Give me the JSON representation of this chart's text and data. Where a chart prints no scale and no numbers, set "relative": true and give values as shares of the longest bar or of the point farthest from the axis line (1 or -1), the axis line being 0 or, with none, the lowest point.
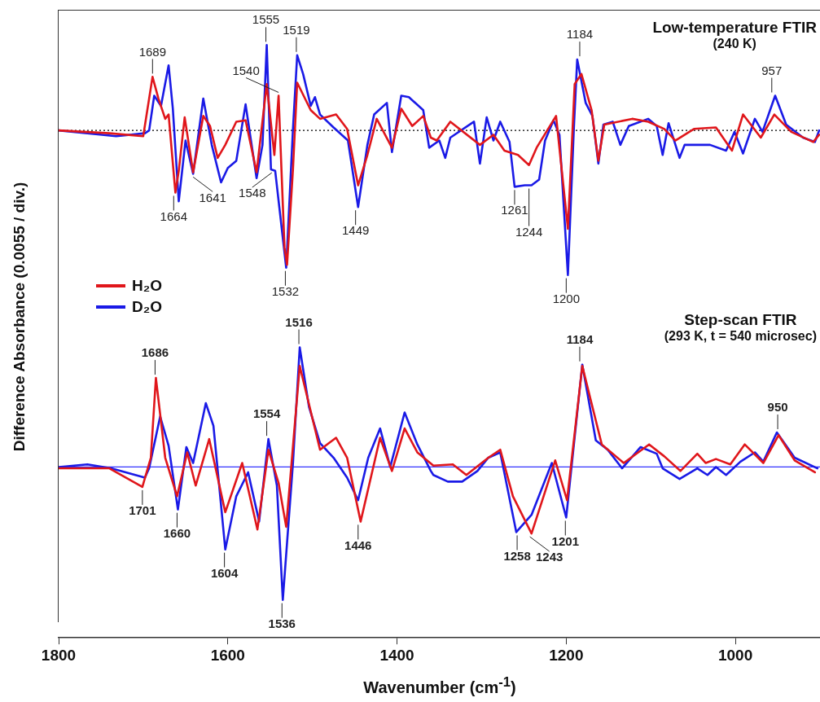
{
  "chart_data": [
    {
      "type": "line",
      "title": "Low-temperature FTIR",
      "subtitle": "(240 K)",
      "ylabel": "Difference Absorbance (0.0055 / div.)",
      "relative": true,
      "xlim": [
        1800,
        900
      ],
      "grid": false,
      "legend": "bottom left",
      "marker": "none",
      "line_style": "solid",
      "ref_lines": [
        {
          "axis": "y",
          "value": 0,
          "color": "#000000",
          "line_style": "dotted"
        }
      ],
      "series": [
        {
          "name": "H₂O",
          "color": "#e0161b",
          "x": [
            1800,
            1740,
            1700,
            1689,
            1682,
            1674,
            1670,
            1662,
            1658,
            1651,
            1641,
            1629,
            1621,
            1612,
            1603,
            1590,
            1579,
            1566,
            1554,
            1545,
            1540,
            1533,
            1530,
            1523,
            1518,
            1502,
            1491,
            1472,
            1459,
            1446,
            1435,
            1424,
            1406,
            1395,
            1382,
            1369,
            1360,
            1353,
            1337,
            1302,
            1286,
            1273,
            1257,
            1244,
            1235,
            1212,
            1198,
            1190,
            1182,
            1170,
            1162,
            1155,
            1122,
            1103,
            1084,
            1071,
            1049,
            1023,
            1004,
            991,
            970,
            954,
            934,
            908,
            901
          ],
          "values": [
            0,
            -0.02,
            -0.04,
            0.37,
            0.22,
            0.08,
            0.11,
            -0.43,
            -0.28,
            0.09,
            -0.29,
            0.1,
            0.03,
            -0.19,
            -0.1,
            0.06,
            0.07,
            -0.29,
            0.32,
            -0.17,
            0.24,
            -0.81,
            -0.93,
            -0.27,
            0.33,
            0.14,
            0.08,
            0.11,
            0.01,
            -0.38,
            -0.17,
            0.08,
            -0.12,
            0.15,
            0.03,
            0.1,
            -0.05,
            -0.07,
            0.06,
            -0.1,
            -0.03,
            -0.14,
            -0.17,
            -0.24,
            -0.12,
            0.1,
            -0.68,
            0.32,
            0.39,
            0.14,
            -0.21,
            0.04,
            0.08,
            0.06,
            0.01,
            -0.07,
            0.01,
            0.02,
            -0.14,
            0.11,
            -0.05,
            0.11,
            -0.01,
            -0.08,
            -0.03
          ]
        },
        {
          "name": "D₂O",
          "color": "#1a1ae6",
          "x": [
            1800,
            1732,
            1698,
            1693,
            1687,
            1679,
            1670,
            1665,
            1658,
            1650,
            1641,
            1629,
            1619,
            1608,
            1600,
            1590,
            1579,
            1566,
            1559,
            1554,
            1549,
            1544,
            1531,
            1523,
            1518,
            1511,
            1502,
            1497,
            1491,
            1475,
            1458,
            1446,
            1435,
            1427,
            1412,
            1406,
            1395,
            1386,
            1369,
            1362,
            1350,
            1343,
            1337,
            1309,
            1302,
            1294,
            1286,
            1278,
            1267,
            1261,
            1249,
            1241,
            1232,
            1225,
            1215,
            1208,
            1198,
            1191,
            1187,
            1177,
            1169,
            1162,
            1156,
            1145,
            1136,
            1126,
            1103,
            1093,
            1086,
            1079,
            1066,
            1060,
            1030,
            1011,
            1001,
            991,
            977,
            968,
            953,
            940,
            920,
            906,
            901
          ],
          "values": [
            0,
            -0.04,
            -0.02,
            0,
            0.24,
            0.17,
            0.45,
            0.15,
            -0.49,
            -0.07,
            -0.3,
            0.22,
            -0.1,
            -0.36,
            -0.26,
            -0.21,
            0.18,
            -0.33,
            -0.1,
            0.59,
            -0.27,
            -0.28,
            -0.95,
            0.01,
            0.52,
            0.39,
            0.17,
            0.23,
            0.11,
            0.02,
            -0.07,
            -0.53,
            -0.1,
            0.11,
            0.19,
            -0.15,
            0.24,
            0.23,
            0.14,
            -0.12,
            -0.07,
            -0.19,
            -0.05,
            0.06,
            -0.23,
            0.09,
            -0.07,
            0.06,
            -0.08,
            -0.39,
            -0.38,
            -0.38,
            -0.34,
            -0.07,
            0.07,
            -0.03,
            -1,
            0.01,
            0.49,
            0.19,
            0.1,
            -0.23,
            0.04,
            0.06,
            -0.1,
            0.03,
            0.08,
            0.03,
            -0.17,
            0.05,
            -0.19,
            -0.1,
            -0.1,
            -0.14,
            -0.01,
            -0.16,
            0.08,
            -0.01,
            0.24,
            0.04,
            -0.05,
            -0.08,
            0
          ]
        }
      ],
      "annotations": [
        {
          "text": "1689",
          "x": 1689,
          "y": 0.37
        },
        {
          "text": "1664",
          "x": 1664,
          "y": -0.43
        },
        {
          "text": "1641",
          "x": 1641,
          "y": -0.3
        },
        {
          "text": "1555",
          "x": 1555,
          "y": 0.59
        },
        {
          "text": "1548",
          "x": 1548,
          "y": -0.27
        },
        {
          "text": "1540",
          "x": 1540,
          "y": 0.24
        },
        {
          "text": "1532",
          "x": 1532,
          "y": -0.95
        },
        {
          "text": "1519",
          "x": 1519,
          "y": 0.52
        },
        {
          "text": "1449",
          "x": 1449,
          "y": -0.53
        },
        {
          "text": "1261",
          "x": 1261,
          "y": -0.39
        },
        {
          "text": "1244",
          "x": 1244,
          "y": -0.38
        },
        {
          "text": "1184",
          "x": 1184,
          "y": 0.49
        },
        {
          "text": "1200",
          "x": 1200,
          "y": -1
        },
        {
          "text": "957",
          "x": 957,
          "y": 0.24
        }
      ]
    },
    {
      "type": "line",
      "title": "Step-scan FTIR",
      "subtitle": "(293 K, t = 540 microsec)",
      "xlabel": "Wavenumber (cm$^{-1}$)",
      "relative": true,
      "xlim": [
        1800,
        900
      ],
      "xticks": [
        1800,
        1600,
        1400,
        1200,
        1000
      ],
      "grid": false,
      "marker": "none",
      "line_style": "solid",
      "ref_lines": [
        {
          "axis": "y",
          "value": 0,
          "color": "#3333ff",
          "line_style": "solid"
        }
      ],
      "series": [
        {
          "color": "#e0161b",
          "x": [
            1800,
            1740,
            1701,
            1691,
            1685,
            1674,
            1660,
            1648,
            1638,
            1622,
            1603,
            1583,
            1565,
            1552,
            1540,
            1531,
            1515,
            1491,
            1472,
            1459,
            1443,
            1420,
            1406,
            1391,
            1376,
            1357,
            1334,
            1318,
            1292,
            1278,
            1263,
            1241,
            1213,
            1199,
            1181,
            1158,
            1132,
            1102,
            1084,
            1065,
            1045,
            1035,
            1023,
            1006,
            989,
            967,
            949,
            930,
            906
          ],
          "values": [
            -0.01,
            -0.01,
            -0.15,
            0.07,
            0.67,
            0.07,
            -0.22,
            0.11,
            -0.14,
            0.21,
            -0.34,
            0.03,
            -0.47,
            0.13,
            -0.12,
            -0.45,
            0.76,
            0.13,
            0.22,
            0.07,
            -0.41,
            0.22,
            -0.03,
            0.29,
            0.11,
            0.01,
            0.02,
            -0.06,
            0.07,
            0.13,
            -0.22,
            -0.5,
            0.05,
            -0.25,
            0.76,
            0.17,
            0.03,
            0.17,
            0.08,
            -0.03,
            0.1,
            0.03,
            0.06,
            0.02,
            0.17,
            0.03,
            0.24,
            0.05,
            -0.04
          ]
        },
        {
          "color": "#1a1ae6",
          "x": [
            1800,
            1766,
            1738,
            1698,
            1693,
            1680,
            1670,
            1659,
            1649,
            1641,
            1626,
            1617,
            1603,
            1590,
            1576,
            1563,
            1552,
            1542,
            1535,
            1523,
            1515,
            1504,
            1491,
            1475,
            1459,
            1446,
            1434,
            1420,
            1408,
            1391,
            1376,
            1360,
            1357,
            1340,
            1323,
            1305,
            1292,
            1278,
            1259,
            1241,
            1217,
            1200,
            1181,
            1165,
            1151,
            1134,
            1112,
            1093,
            1086,
            1066,
            1045,
            1033,
            1023,
            1011,
            994,
            977,
            967,
            951,
            930,
            903
          ],
          "values": [
            0,
            0.02,
            -0.01,
            -0.08,
            -0.01,
            0.38,
            0.16,
            -0.32,
            0.15,
            0.03,
            0.48,
            0.31,
            -0.62,
            -0.22,
            -0.04,
            -0.41,
            0.21,
            -0.14,
            -1,
            0.03,
            0.9,
            0.45,
            0.18,
            0.07,
            -0.08,
            -0.25,
            0.07,
            0.29,
            0,
            0.41,
            0.17,
            -0.03,
            -0.06,
            -0.11,
            -0.11,
            -0.03,
            0.07,
            0.11,
            -0.49,
            -0.36,
            0.03,
            -0.38,
            0.77,
            0.2,
            0.13,
            -0.01,
            0.15,
            0.1,
            -0.01,
            -0.09,
            -0.01,
            -0.06,
            0,
            -0.06,
            0.04,
            0.11,
            0.04,
            0.26,
            0.07,
            -0.01
          ]
        }
      ],
      "annotations": [
        {
          "text": "1686",
          "x": 1686,
          "y": 0.67
        },
        {
          "text": "1701",
          "x": 1701,
          "y": -0.15
        },
        {
          "text": "1660",
          "x": 1660,
          "y": -0.32
        },
        {
          "text": "1604",
          "x": 1604,
          "y": -0.62
        },
        {
          "text": "1554",
          "x": 1554,
          "y": 0.21
        },
        {
          "text": "1536",
          "x": 1536,
          "y": -1
        },
        {
          "text": "1516",
          "x": 1516,
          "y": 0.9
        },
        {
          "text": "1446",
          "x": 1446,
          "y": -0.41
        },
        {
          "text": "1258",
          "x": 1258,
          "y": -0.49
        },
        {
          "text": "1243",
          "x": 1243,
          "y": -0.5
        },
        {
          "text": "1201",
          "x": 1201,
          "y": -0.38
        },
        {
          "text": "1184",
          "x": 1184,
          "y": 0.77
        },
        {
          "text": "950",
          "x": 950,
          "y": 0.26
        }
      ]
    }
  ]
}
